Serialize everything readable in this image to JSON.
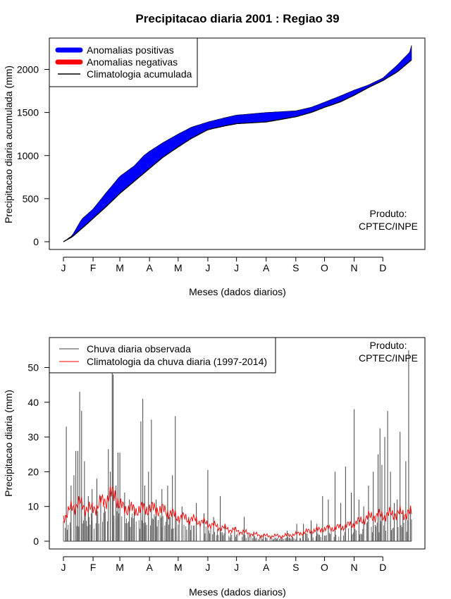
{
  "title": "Precipitacao diaria 2001 : Regiao 39",
  "colors": {
    "positive": "#0000ff",
    "negative": "#ff0000",
    "climatology_line": "#000000",
    "observed_bars": "#444444",
    "climatology_daily": "#ff0000"
  },
  "chart_data": [
    {
      "type": "area",
      "panel": "top",
      "xlabel": "Meses (dados diarios)",
      "ylabel": "Precipitacao diaria acumulada (mm)",
      "xlim": [
        1,
        365
      ],
      "ylim": [
        0,
        2300
      ],
      "month_ticks": [
        "J",
        "F",
        "M",
        "A",
        "M",
        "J",
        "J",
        "A",
        "S",
        "O",
        "N",
        "D"
      ],
      "month_days": [
        1,
        32,
        60,
        91,
        121,
        152,
        182,
        213,
        244,
        274,
        305,
        335
      ],
      "y_ticks": [
        0,
        500,
        1000,
        1500,
        2000
      ],
      "legend": [
        "Anomalias positivas",
        "Anomalias negativas",
        "Climatologia acumulada"
      ],
      "legend_position": "top-left",
      "annotation": [
        "Produto:",
        "CPTEC/INPE"
      ],
      "observed_cumulative": [
        [
          1,
          0
        ],
        [
          10,
          70
        ],
        [
          20,
          260
        ],
        [
          32,
          380
        ],
        [
          45,
          560
        ],
        [
          60,
          760
        ],
        [
          75,
          880
        ],
        [
          85,
          1000
        ],
        [
          91,
          1050
        ],
        [
          105,
          1150
        ],
        [
          121,
          1250
        ],
        [
          135,
          1330
        ],
        [
          152,
          1390
        ],
        [
          170,
          1440
        ],
        [
          182,
          1470
        ],
        [
          213,
          1500
        ],
        [
          244,
          1520
        ],
        [
          260,
          1560
        ],
        [
          274,
          1620
        ],
        [
          290,
          1690
        ],
        [
          305,
          1760
        ],
        [
          320,
          1820
        ],
        [
          335,
          1900
        ],
        [
          350,
          2050
        ],
        [
          363,
          2200
        ],
        [
          365,
          2280
        ]
      ],
      "climatology_cumulative": [
        [
          1,
          0
        ],
        [
          10,
          55
        ],
        [
          20,
          150
        ],
        [
          32,
          270
        ],
        [
          45,
          400
        ],
        [
          60,
          560
        ],
        [
          75,
          700
        ],
        [
          91,
          850
        ],
        [
          105,
          980
        ],
        [
          121,
          1100
        ],
        [
          135,
          1200
        ],
        [
          152,
          1300
        ],
        [
          170,
          1345
        ],
        [
          182,
          1370
        ],
        [
          213,
          1390
        ],
        [
          244,
          1450
        ],
        [
          260,
          1500
        ],
        [
          274,
          1560
        ],
        [
          290,
          1620
        ],
        [
          305,
          1700
        ],
        [
          320,
          1790
        ],
        [
          335,
          1870
        ],
        [
          350,
          1970
        ],
        [
          365,
          2110
        ]
      ]
    },
    {
      "type": "bar",
      "panel": "bottom",
      "xlabel": "Meses (dados diarios)",
      "ylabel": "Precipitacao diaria (mm)",
      "xlim": [
        1,
        365
      ],
      "ylim": [
        0,
        55
      ],
      "month_ticks": [
        "J",
        "F",
        "M",
        "A",
        "M",
        "J",
        "J",
        "A",
        "S",
        "O",
        "N",
        "D"
      ],
      "month_days": [
        1,
        32,
        60,
        91,
        121,
        152,
        182,
        213,
        244,
        274,
        305,
        335
      ],
      "y_ticks": [
        0,
        10,
        20,
        30,
        40,
        50
      ],
      "legend": [
        "Chuva diaria observada",
        "Climatologia da chuva diaria (1997-2014)"
      ],
      "legend_position": "top-left",
      "annotation": [
        "Produto:",
        "CPTEC/INPE"
      ],
      "observed_daily_peaks": [
        [
          4,
          33
        ],
        [
          9,
          16
        ],
        [
          12,
          19
        ],
        [
          14,
          26
        ],
        [
          16,
          26
        ],
        [
          18,
          43
        ],
        [
          20,
          37.5
        ],
        [
          23,
          23
        ],
        [
          27,
          13
        ],
        [
          31,
          15
        ],
        [
          36,
          18
        ],
        [
          40,
          13
        ],
        [
          44,
          10
        ],
        [
          48,
          26.5
        ],
        [
          50,
          20
        ],
        [
          52,
          60
        ],
        [
          53,
          48
        ],
        [
          56,
          16
        ],
        [
          58,
          25.5
        ],
        [
          60,
          25.5
        ],
        [
          65,
          14
        ],
        [
          70,
          12
        ],
        [
          75,
          10
        ],
        [
          82,
          34.5
        ],
        [
          84,
          41
        ],
        [
          86,
          16
        ],
        [
          90,
          20
        ],
        [
          93,
          35
        ],
        [
          98,
          12
        ],
        [
          104,
          15
        ],
        [
          110,
          16
        ],
        [
          115,
          19
        ],
        [
          118,
          36
        ],
        [
          125,
          10
        ],
        [
          132,
          7
        ],
        [
          140,
          11
        ],
        [
          148,
          8
        ],
        [
          152,
          20.5
        ],
        [
          158,
          7
        ],
        [
          165,
          13
        ],
        [
          170,
          5
        ],
        [
          180,
          4
        ],
        [
          190,
          7
        ],
        [
          200,
          2
        ],
        [
          210,
          2
        ],
        [
          225,
          1
        ],
        [
          235,
          3
        ],
        [
          245,
          5
        ],
        [
          252,
          5
        ],
        [
          260,
          6
        ],
        [
          266,
          5
        ],
        [
          272,
          13
        ],
        [
          278,
          12
        ],
        [
          285,
          20
        ],
        [
          291,
          11
        ],
        [
          296,
          21.5
        ],
        [
          302,
          14
        ],
        [
          305,
          38
        ],
        [
          310,
          12
        ],
        [
          315,
          10
        ],
        [
          320,
          16
        ],
        [
          325,
          20
        ],
        [
          330,
          25
        ],
        [
          332,
          32.5
        ],
        [
          334,
          22
        ],
        [
          337,
          30
        ],
        [
          340,
          37.5
        ],
        [
          343,
          20
        ],
        [
          347,
          11
        ],
        [
          350,
          12
        ],
        [
          353,
          31.5
        ],
        [
          356,
          9
        ],
        [
          359,
          23
        ],
        [
          362,
          55
        ],
        [
          364,
          10
        ]
      ],
      "climatology_daily_points": [
        [
          1,
          7
        ],
        [
          15,
          11
        ],
        [
          30,
          9
        ],
        [
          45,
          12
        ],
        [
          55,
          14
        ],
        [
          60,
          10
        ],
        [
          75,
          9
        ],
        [
          91,
          9.5
        ],
        [
          105,
          9
        ],
        [
          121,
          7
        ],
        [
          140,
          6
        ],
        [
          152,
          5
        ],
        [
          165,
          4
        ],
        [
          182,
          3
        ],
        [
          200,
          2
        ],
        [
          213,
          1.5
        ],
        [
          230,
          1.5
        ],
        [
          244,
          2
        ],
        [
          260,
          3
        ],
        [
          274,
          3.5
        ],
        [
          290,
          4
        ],
        [
          305,
          5
        ],
        [
          320,
          7
        ],
        [
          335,
          7.5
        ],
        [
          350,
          8
        ],
        [
          365,
          8
        ]
      ]
    }
  ]
}
